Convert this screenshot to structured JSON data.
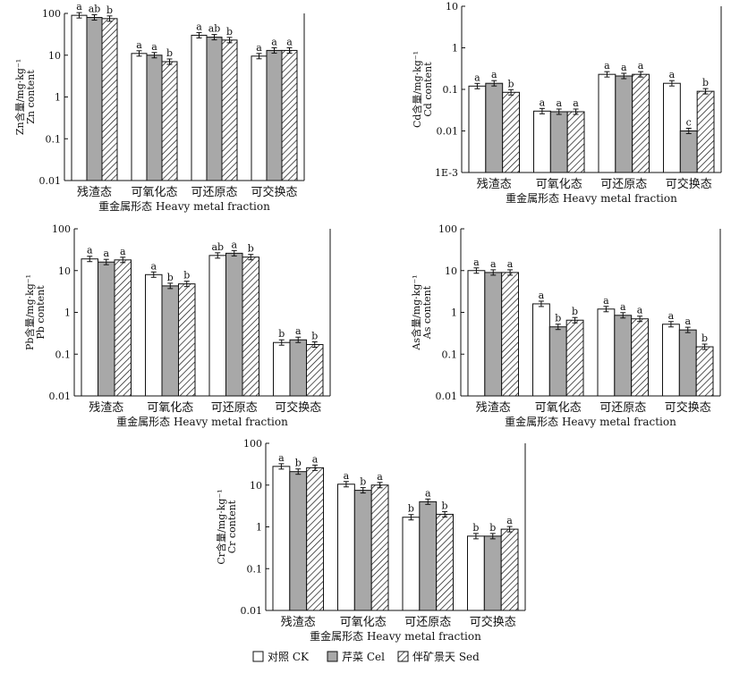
{
  "colors": {
    "ck": "#ffffff",
    "cel": "#a8a8a8",
    "sed": "hatch",
    "stroke": "#111111"
  },
  "legend": [
    {
      "key": "ck",
      "label": "对照 CK"
    },
    {
      "key": "cel",
      "label": "芹菜 Cel"
    },
    {
      "key": "sed",
      "label": "伴矿景天 Sed"
    }
  ],
  "chart_data": [
    {
      "type": "bar",
      "panel": "Zn",
      "yscale": "log",
      "ylim": [
        0.01,
        100
      ],
      "yticks": [
        "100",
        "10",
        "1",
        "0.1",
        "0.01"
      ],
      "ylabel": "Zn含量/mg·kg⁻¹",
      "ylabel2": "Zn content",
      "xlabel": "重金属形态 Heavy metal fraction",
      "categories": [
        "残渣态",
        "可氧化态",
        "可还原态",
        "可交换态"
      ],
      "series": [
        {
          "name": "对照 CK",
          "key": "ck",
          "values": [
            90,
            11,
            30,
            9.5
          ],
          "letters": [
            "a",
            "a",
            "a",
            "a"
          ]
        },
        {
          "name": "芹菜 Cel",
          "key": "cel",
          "values": [
            80,
            10,
            27,
            13
          ],
          "letters": [
            "ab",
            "a",
            "ab",
            "a"
          ]
        },
        {
          "name": "伴矿景天 Sed",
          "key": "sed",
          "values": [
            75,
            7,
            23,
            13
          ],
          "letters": [
            "b",
            "b",
            "b",
            "a"
          ]
        }
      ]
    },
    {
      "type": "bar",
      "panel": "Cd",
      "yscale": "log",
      "ylim": [
        0.001,
        10
      ],
      "yticks": [
        "10",
        "1",
        "0.1",
        "0.01",
        "1E-3"
      ],
      "ylabel": "Cd含量/mg·kg⁻¹",
      "ylabel2": "Cd content",
      "xlabel": "重金属形态 Heavy metal fraction",
      "categories": [
        "残渣态",
        "可氧化态",
        "可还原态",
        "可交换态"
      ],
      "series": [
        {
          "name": "对照 CK",
          "key": "ck",
          "values": [
            0.12,
            0.03,
            0.23,
            0.14
          ],
          "letters": [
            "a",
            "a",
            "a",
            "a"
          ]
        },
        {
          "name": "芹菜 Cel",
          "key": "cel",
          "values": [
            0.14,
            0.029,
            0.21,
            0.01
          ],
          "letters": [
            "a",
            "a",
            "a",
            "c"
          ]
        },
        {
          "name": "伴矿景天 Sed",
          "key": "sed",
          "values": [
            0.085,
            0.029,
            0.23,
            0.09
          ],
          "letters": [
            "b",
            "a",
            "a",
            "b"
          ]
        }
      ]
    },
    {
      "type": "bar",
      "panel": "Pb",
      "yscale": "log",
      "ylim": [
        0.01,
        100
      ],
      "yticks": [
        "100",
        "10",
        "1",
        "0.1",
        "0.01"
      ],
      "ylabel": "Pb含量/mg·kg⁻¹",
      "ylabel2": "Pb content",
      "xlabel": "重金属形态 Heavy metal fraction",
      "categories": [
        "残渣态",
        "可氧化态",
        "可还原态",
        "可交换态"
      ],
      "series": [
        {
          "name": "对照 CK",
          "key": "ck",
          "values": [
            19,
            8,
            23,
            0.19
          ],
          "letters": [
            "a",
            "a",
            "ab",
            "b"
          ]
        },
        {
          "name": "芹菜 Cel",
          "key": "cel",
          "values": [
            16,
            4.3,
            26,
            0.22
          ],
          "letters": [
            "a",
            "b",
            "a",
            "a"
          ]
        },
        {
          "name": "伴矿景天 Sed",
          "key": "sed",
          "values": [
            18,
            4.8,
            21,
            0.17
          ],
          "letters": [
            "a",
            "b",
            "b",
            "b"
          ]
        }
      ]
    },
    {
      "type": "bar",
      "panel": "As",
      "yscale": "log",
      "ylim": [
        0.01,
        100
      ],
      "yticks": [
        "100",
        "10",
        "1",
        "0.1",
        "0.01"
      ],
      "ylabel": "As含量/mg·kg⁻¹",
      "ylabel2": "As content",
      "xlabel": "重金属形态 Heavy metal fraction",
      "categories": [
        "残渣态",
        "可氧化态",
        "可还原态",
        "可交换态"
      ],
      "series": [
        {
          "name": "对照 CK",
          "key": "ck",
          "values": [
            10,
            1.6,
            1.2,
            0.52
          ],
          "letters": [
            "a",
            "a",
            "a",
            "a"
          ]
        },
        {
          "name": "芹菜 Cel",
          "key": "cel",
          "values": [
            9,
            0.45,
            0.85,
            0.38
          ],
          "letters": [
            "a",
            "b",
            "a",
            "a"
          ]
        },
        {
          "name": "伴矿景天 Sed",
          "key": "sed",
          "values": [
            9,
            0.65,
            0.7,
            0.15
          ],
          "letters": [
            "a",
            "b",
            "a",
            "b"
          ]
        }
      ]
    },
    {
      "type": "bar",
      "panel": "Cr",
      "yscale": "log",
      "ylim": [
        0.01,
        100
      ],
      "yticks": [
        "100",
        "10",
        "1",
        "0.1",
        "0.01"
      ],
      "ylabel": "Cr含量/mg·kg⁻¹",
      "ylabel2": "Cr content",
      "xlabel": "重金属形态 Heavy metal fraction",
      "categories": [
        "残渣态",
        "可氧化态",
        "可还原态",
        "可交换态"
      ],
      "series": [
        {
          "name": "对照 CK",
          "key": "ck",
          "values": [
            28,
            10.5,
            1.7,
            0.6
          ],
          "letters": [
            "a",
            "a",
            "b",
            "b"
          ]
        },
        {
          "name": "芹菜 Cel",
          "key": "cel",
          "values": [
            21,
            7.5,
            4,
            0.6
          ],
          "letters": [
            "b",
            "b",
            "a",
            "b"
          ]
        },
        {
          "name": "伴矿景天 Sed",
          "key": "sed",
          "values": [
            26,
            10,
            2,
            0.88
          ],
          "letters": [
            "a",
            "a",
            "b",
            "a"
          ]
        }
      ]
    }
  ]
}
